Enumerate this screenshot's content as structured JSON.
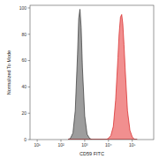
{
  "chart_data": {
    "type": "area",
    "x_label": "CD59 FITC",
    "y_label": "Normalized To Mode",
    "x": [
      200,
      250,
      320,
      400,
      500,
      560,
      630,
      710,
      800,
      1000,
      1260,
      1600,
      2000,
      8000,
      10000,
      12600,
      16000,
      20000,
      25000,
      28000,
      32000,
      36000,
      40000,
      45000,
      50000,
      63000,
      80000,
      100000,
      126000,
      160000
    ],
    "series": [
      {
        "color": "#8c8c8c",
        "values": [
          0,
          1,
          5,
          22,
          65,
          92,
          99,
          85,
          55,
          18,
          4,
          1,
          0,
          0,
          0,
          0,
          0,
          0,
          0,
          0,
          0,
          0,
          0,
          0,
          0,
          0,
          0,
          0,
          0,
          0
        ]
      },
      {
        "color": "#ee7b7b",
        "values": [
          0,
          0,
          0,
          0,
          0,
          0,
          0,
          0,
          0,
          0,
          0,
          0,
          0,
          0,
          1,
          3,
          10,
          30,
          62,
          80,
          93,
          95,
          88,
          72,
          55,
          22,
          7,
          2,
          0,
          0
        ]
      }
    ],
    "log": "x",
    "xlim": [
      5,
      800000
    ],
    "xticks": [
      {
        "value": 10,
        "label": "10¹"
      },
      {
        "value": 100,
        "label": "10²"
      },
      {
        "value": 1000,
        "label": "10³"
      },
      {
        "value": 10000,
        "label": "10⁴"
      },
      {
        "value": 100000,
        "label": "10⁵"
      }
    ],
    "ylim": [
      0,
      102
    ],
    "yticks": [
      0,
      20,
      40,
      60,
      80,
      100
    ]
  }
}
